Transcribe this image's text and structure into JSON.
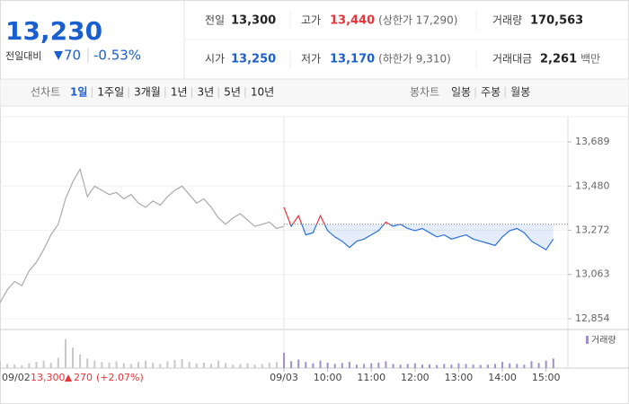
{
  "header": {
    "price": "13,230",
    "change_label": "전일대비",
    "change": "70",
    "change_pct": "-0.53%"
  },
  "info": [
    {
      "label": "전일",
      "value": "13,300"
    },
    {
      "label": "고가",
      "value": "13,440",
      "note": "(상한가 17,290)"
    },
    {
      "label": "거래량",
      "value": "170,563"
    },
    {
      "label": "시가",
      "value": "13,250"
    },
    {
      "label": "저가",
      "value": "13,170",
      "note": "(하한가 9,310)"
    },
    {
      "label": "거래대금",
      "value": "2,261",
      "note": "백만"
    }
  ],
  "tabs": {
    "line_label": "선차트",
    "line": [
      "1일",
      "1주일",
      "3개월",
      "1년",
      "3년",
      "5년",
      "10년"
    ],
    "candle_label": "봉차트",
    "candle": [
      "일봉",
      "주봉",
      "월봉"
    ]
  },
  "footer": {
    "close": "13,300",
    "change": "270",
    "change_pct": "(+2.07%)"
  },
  "chart_data": {
    "type": "line",
    "xlim": [
      0,
      780
    ],
    "xticks": [
      {
        "value": 0,
        "label": "09/02"
      },
      {
        "value": 390,
        "label": "09/03"
      },
      {
        "value": 450,
        "label": "10:00"
      },
      {
        "value": 510,
        "label": "11:00"
      },
      {
        "value": 570,
        "label": "12:00"
      },
      {
        "value": 630,
        "label": "13:00"
      },
      {
        "value": 690,
        "label": "14:00"
      },
      {
        "value": 750,
        "label": "15:00"
      }
    ],
    "ylim": [
      12854,
      13689
    ],
    "yticks": [
      {
        "value": 13689,
        "label": "13,689"
      },
      {
        "value": 13480,
        "label": "13,480"
      },
      {
        "value": 13272,
        "label": "13,272"
      },
      {
        "value": 13063,
        "label": "13,063"
      },
      {
        "value": 12854,
        "label": "12,854"
      }
    ],
    "grid": true,
    "baseline": 13300,
    "series": [
      {
        "color": "#aaaaaa",
        "x": [
          0,
          10,
          20,
          30,
          40,
          50,
          60,
          70,
          80,
          90,
          100,
          110,
          120,
          130,
          140,
          150,
          160,
          170,
          180,
          190,
          200,
          210,
          220,
          230,
          240,
          250,
          260,
          270,
          280,
          290,
          300,
          310,
          320,
          330,
          340,
          350,
          360,
          370,
          380,
          390
        ],
        "values": [
          12930,
          12990,
          13030,
          13010,
          13080,
          13120,
          13180,
          13250,
          13300,
          13420,
          13500,
          13560,
          13430,
          13480,
          13460,
          13440,
          13450,
          13420,
          13440,
          13400,
          13380,
          13410,
          13390,
          13430,
          13460,
          13480,
          13440,
          13400,
          13420,
          13380,
          13330,
          13300,
          13330,
          13350,
          13320,
          13290,
          13300,
          13310,
          13280,
          13290
        ]
      },
      {
        "color": "#2a6fdb",
        "up_color": "#e8333a",
        "x": [
          390,
          400,
          410,
          420,
          430,
          440,
          450,
          460,
          470,
          480,
          490,
          500,
          510,
          520,
          530,
          540,
          550,
          560,
          570,
          580,
          590,
          600,
          610,
          620,
          630,
          640,
          650,
          660,
          670,
          680,
          690,
          700,
          710,
          720,
          730,
          740,
          750,
          760
        ],
        "values": [
          13380,
          13290,
          13340,
          13250,
          13260,
          13340,
          13270,
          13240,
          13220,
          13190,
          13220,
          13230,
          13250,
          13270,
          13310,
          13290,
          13300,
          13280,
          13270,
          13280,
          13260,
          13240,
          13250,
          13230,
          13240,
          13250,
          13230,
          13220,
          13210,
          13200,
          13240,
          13270,
          13280,
          13260,
          13220,
          13200,
          13180,
          13230
        ]
      }
    ],
    "volume": {
      "label": "거래량",
      "ylim": [
        0,
        100
      ],
      "series": [
        {
          "color": "#c8c8c8",
          "values": [
            20,
            12,
            10,
            8,
            14,
            18,
            22,
            16,
            30,
            85,
            60,
            40,
            28,
            22,
            18,
            16,
            20,
            14,
            12,
            18,
            22,
            15,
            12,
            20,
            24,
            26,
            18,
            14,
            16,
            12,
            22,
            15,
            10,
            12,
            14,
            10,
            12,
            16,
            18,
            30
          ]
        },
        {
          "color": "#a08fd0",
          "values": [
            45,
            20,
            25,
            18,
            14,
            22,
            16,
            12,
            15,
            18,
            10,
            12,
            14,
            16,
            20,
            12,
            10,
            12,
            14,
            10,
            11,
            9,
            12,
            10,
            14,
            12,
            10,
            9,
            10,
            12,
            18,
            14,
            12,
            10,
            20,
            15,
            22,
            28
          ]
        }
      ]
    }
  }
}
